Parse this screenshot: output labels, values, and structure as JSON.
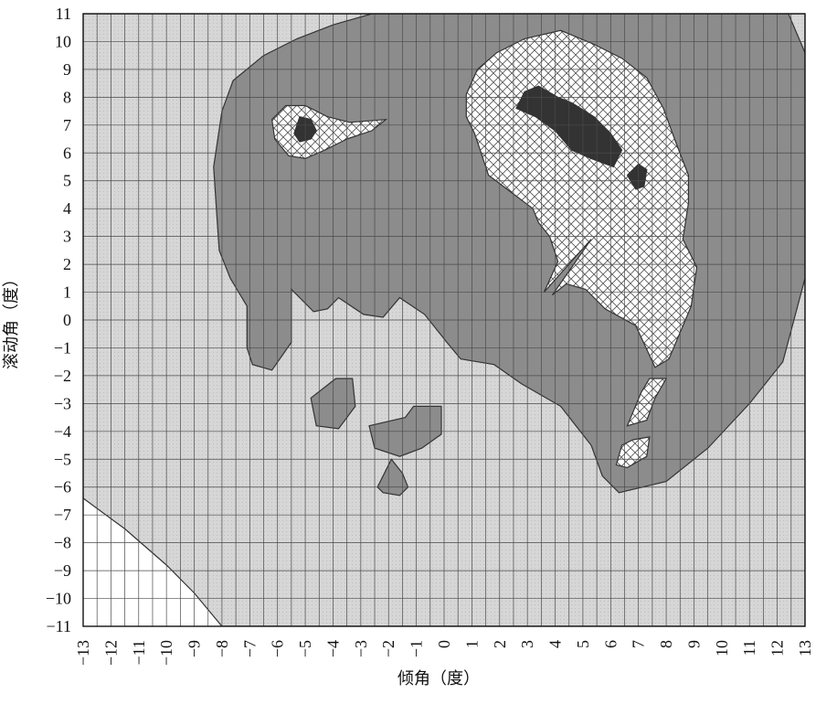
{
  "chart_data": {
    "type": "contour",
    "title": "",
    "xlabel": "倾角（度）",
    "ylabel": "滚动角（度）",
    "xlim": [
      -13,
      13
    ],
    "ylim": [
      -11,
      11
    ],
    "x_ticks": [
      -13,
      -12,
      -11,
      -10,
      -9,
      -8,
      -7,
      -6,
      -5,
      -4,
      -3,
      -2,
      -1,
      0,
      1,
      2,
      3,
      4,
      5,
      6,
      7,
      8,
      9,
      10,
      11,
      12,
      13
    ],
    "y_ticks": [
      11,
      10,
      9,
      8,
      7,
      6,
      5,
      4,
      3,
      2,
      1,
      0,
      -1,
      -2,
      -3,
      -4,
      -5,
      -6,
      -7,
      -8,
      -9,
      -10,
      -11
    ],
    "grid": true,
    "legend": "none",
    "regions": [
      {
        "level": "light",
        "fill": "#d9d9d9",
        "polygons": [
          [
            [
              -13,
              -6.4
            ],
            [
              -11.5,
              -7.5
            ],
            [
              -10,
              -8.8
            ],
            [
              -9,
              -9.8
            ],
            [
              -8,
              -11
            ],
            [
              13,
              -11
            ],
            [
              13,
              11
            ],
            [
              12.4,
              11
            ],
            [
              12,
              11
            ],
            [
              -13,
              11
            ]
          ]
        ]
      },
      {
        "level": "medium",
        "fill": "#8c8c8c",
        "polygons": [
          [
            [
              -8,
              7.5
            ],
            [
              -7.6,
              8.6
            ],
            [
              -6.5,
              9.5
            ],
            [
              -5.3,
              10.1
            ],
            [
              -4,
              10.6
            ],
            [
              -2.6,
              11
            ],
            [
              12.4,
              11
            ],
            [
              13,
              9.6
            ],
            [
              13,
              1.5
            ],
            [
              12.2,
              -1.5
            ],
            [
              11,
              -3
            ],
            [
              9.5,
              -4.6
            ],
            [
              8,
              -5.8
            ],
            [
              6.3,
              -6.2
            ],
            [
              5.7,
              -5.6
            ],
            [
              5.3,
              -4.5
            ],
            [
              4.2,
              -3.1
            ],
            [
              2.8,
              -2.3
            ],
            [
              1.8,
              -1.6
            ],
            [
              1.2,
              -1.5
            ],
            [
              0.6,
              -1.4
            ],
            [
              0.1,
              -0.8
            ],
            [
              -0.7,
              0.2
            ],
            [
              -1.6,
              0.8
            ],
            [
              -2.2,
              0.1
            ],
            [
              -2.9,
              0.2
            ],
            [
              -3.8,
              0.8
            ],
            [
              -4.2,
              0.4
            ],
            [
              -4.7,
              0.3
            ],
            [
              -5.5,
              1.1
            ],
            [
              -5.5,
              -0.8
            ],
            [
              -6.2,
              -1.8
            ],
            [
              -6.9,
              -1.6
            ],
            [
              -7.1,
              -1
            ],
            [
              -7.1,
              0.5
            ],
            [
              -7.7,
              1.5
            ],
            [
              -8.1,
              2.5
            ],
            [
              -8.2,
              4
            ],
            [
              -8.3,
              5.5
            ]
          ],
          [
            [
              -4.8,
              -2.8
            ],
            [
              -3.9,
              -2.1
            ],
            [
              -3.3,
              -2.1
            ],
            [
              -3.2,
              -3.1
            ],
            [
              -3.8,
              -3.9
            ],
            [
              -4.6,
              -3.8
            ]
          ],
          [
            [
              -2.7,
              -3.8
            ],
            [
              -1.4,
              -3.5
            ],
            [
              -1.1,
              -3.1
            ],
            [
              -0.1,
              -3.1
            ],
            [
              -0.1,
              -4.1
            ],
            [
              -0.8,
              -4.6
            ],
            [
              -1.6,
              -4.9
            ],
            [
              -2.5,
              -4.6
            ]
          ],
          [
            [
              -1.9,
              -5
            ],
            [
              -1.5,
              -5.5
            ],
            [
              -1.3,
              -6
            ],
            [
              -1.6,
              -6.3
            ],
            [
              -2.2,
              -6.2
            ],
            [
              -2.4,
              -6
            ]
          ]
        ]
      },
      {
        "level": "crosshatch",
        "fill": "#ffffff",
        "polygons": [
          [
            [
              -6.2,
              7.2
            ],
            [
              -5.7,
              7.7
            ],
            [
              -5,
              7.7
            ],
            [
              -4.2,
              7.3
            ],
            [
              -3.4,
              7.1
            ],
            [
              -2.1,
              7.2
            ],
            [
              -2.6,
              6.8
            ],
            [
              -3.5,
              6.5
            ],
            [
              -4.3,
              6.1
            ],
            [
              -5,
              5.8
            ],
            [
              -5.6,
              5.9
            ],
            [
              -6.1,
              6.5
            ]
          ],
          [
            [
              0.8,
              8.1
            ],
            [
              1.2,
              9
            ],
            [
              1.9,
              9.6
            ],
            [
              2.9,
              10.1
            ],
            [
              4.2,
              10.4
            ],
            [
              5.4,
              9.9
            ],
            [
              6.4,
              9.4
            ],
            [
              7.3,
              8.7
            ],
            [
              7.9,
              7.6
            ],
            [
              8.3,
              6.5
            ],
            [
              8.8,
              5.2
            ],
            [
              8.8,
              4.2
            ],
            [
              8.6,
              2.9
            ],
            [
              9.1,
              1.9
            ],
            [
              8.9,
              0.5
            ],
            [
              8.1,
              -1.4
            ],
            [
              7.6,
              -1.7
            ],
            [
              6.9,
              -0.2
            ],
            [
              5.8,
              0.4
            ],
            [
              5.1,
              1.1
            ],
            [
              4.4,
              1.3
            ],
            [
              3.9,
              0.9
            ],
            [
              5.3,
              2.9
            ],
            [
              3.6,
              1
            ],
            [
              4.1,
              2.1
            ],
            [
              3.8,
              3
            ],
            [
              3.4,
              3.5
            ],
            [
              3.2,
              4
            ],
            [
              2.4,
              4.6
            ],
            [
              1.6,
              5.2
            ],
            [
              1.3,
              6.1
            ],
            [
              1.1,
              6.7
            ],
            [
              0.8,
              7.3
            ]
          ],
          [
            [
              7.4,
              -2.1
            ],
            [
              8,
              -2.1
            ],
            [
              7.6,
              -2.8
            ],
            [
              7.3,
              -3.6
            ],
            [
              6.6,
              -3.8
            ],
            [
              7.1,
              -2.6
            ]
          ],
          [
            [
              6.4,
              -4.5
            ],
            [
              6.8,
              -4.3
            ],
            [
              7.4,
              -4.2
            ],
            [
              7.3,
              -4.9
            ],
            [
              6.6,
              -5.3
            ],
            [
              6.2,
              -5.2
            ]
          ]
        ]
      },
      {
        "level": "dark",
        "fill": "#333333",
        "polygons": [
          [
            [
              -5.2,
              7.3
            ],
            [
              -4.8,
              7.2
            ],
            [
              -4.6,
              6.8
            ],
            [
              -4.8,
              6.5
            ],
            [
              -5.2,
              6.4
            ],
            [
              -5.4,
              6.7
            ]
          ],
          [
            [
              2.6,
              7.6
            ],
            [
              2.9,
              8.2
            ],
            [
              3.4,
              8.4
            ],
            [
              4.1,
              8
            ],
            [
              4.6,
              7.8
            ],
            [
              5.4,
              7.3
            ],
            [
              6,
              6.7
            ],
            [
              6.4,
              6.1
            ],
            [
              6.1,
              5.5
            ],
            [
              5.3,
              5.8
            ],
            [
              4.6,
              6.1
            ],
            [
              4,
              6.8
            ],
            [
              3.3,
              7.3
            ]
          ],
          [
            [
              6.6,
              5.2
            ],
            [
              7,
              5.6
            ],
            [
              7.3,
              5.4
            ],
            [
              7.2,
              4.8
            ],
            [
              6.9,
              4.7
            ]
          ]
        ]
      }
    ]
  }
}
